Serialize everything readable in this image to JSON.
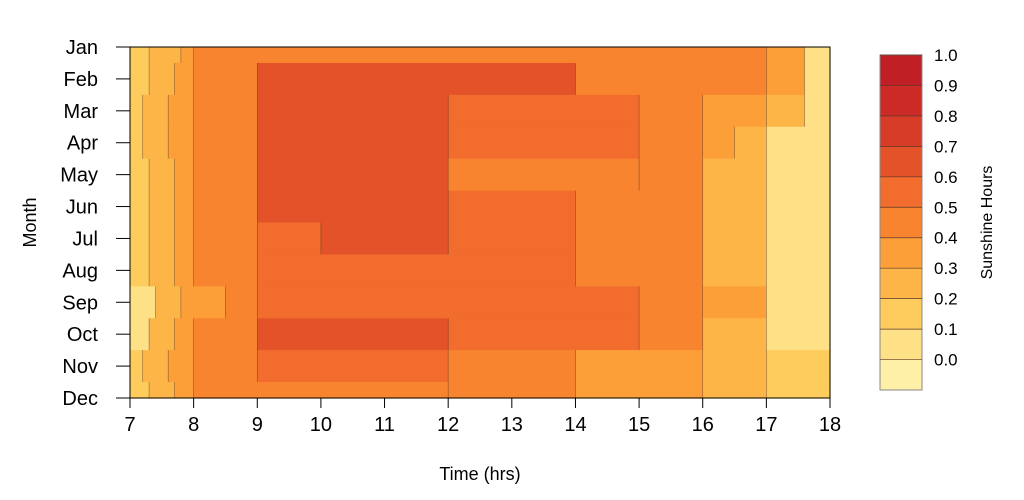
{
  "chart_data": {
    "type": "heatmap",
    "subtype": "filled-contour",
    "title": "",
    "xlabel": "Time (hrs)",
    "ylabel": "Month",
    "xlim": [
      7,
      18
    ],
    "x_ticks": [
      "7",
      "8",
      "9",
      "10",
      "11",
      "12",
      "13",
      "14",
      "15",
      "16",
      "17",
      "18"
    ],
    "y_categories": [
      "Jan",
      "Feb",
      "Mar",
      "Apr",
      "May",
      "Jun",
      "Jul",
      "Aug",
      "Sep",
      "Oct",
      "Nov",
      "Dec"
    ],
    "colorbar": {
      "title": "Sunshine Hours",
      "levels": [
        "0.0",
        "0.1",
        "0.2",
        "0.3",
        "0.4",
        "0.5",
        "0.6",
        "0.7",
        "0.8",
        "0.9",
        "1.0"
      ],
      "colors": [
        "#FFF0A8",
        "#FEE086",
        "#FECC5C",
        "#FDB547",
        "#FD9F39",
        "#F8842F",
        "#F16C2D",
        "#E4522A",
        "#D63C27",
        "#CC2A26",
        "#C01F26"
      ]
    },
    "approx_bands_by_month": [
      {
        "month": "Jan",
        "bands": [
          [
            7,
            7.3,
            2
          ],
          [
            7.3,
            7.8,
            3
          ],
          [
            7.8,
            8.0,
            4
          ],
          [
            8.0,
            17.0,
            5
          ],
          [
            17.0,
            17.6,
            4
          ],
          [
            17.6,
            18,
            1
          ]
        ]
      },
      {
        "month": "Feb",
        "bands": [
          [
            7,
            7.3,
            2
          ],
          [
            7.3,
            7.7,
            3
          ],
          [
            7.7,
            8.0,
            4
          ],
          [
            8.0,
            9.0,
            5
          ],
          [
            9.0,
            14.0,
            7
          ],
          [
            14.0,
            17.0,
            5
          ],
          [
            17.0,
            17.6,
            4
          ],
          [
            17.6,
            18,
            1
          ]
        ]
      },
      {
        "month": "Mar",
        "bands": [
          [
            7,
            7.2,
            2
          ],
          [
            7.2,
            7.6,
            3
          ],
          [
            7.6,
            8.0,
            4
          ],
          [
            8.0,
            9.0,
            5
          ],
          [
            9.0,
            12.0,
            7
          ],
          [
            12.0,
            15.0,
            6
          ],
          [
            15.0,
            16.0,
            5
          ],
          [
            16.0,
            17.0,
            4
          ],
          [
            17.0,
            17.6,
            3
          ],
          [
            17.6,
            18,
            1
          ]
        ]
      },
      {
        "month": "Apr",
        "bands": [
          [
            7,
            7.2,
            2
          ],
          [
            7.2,
            7.6,
            3
          ],
          [
            7.6,
            8.0,
            4
          ],
          [
            8.0,
            9.0,
            5
          ],
          [
            9.0,
            12.0,
            7
          ],
          [
            12.0,
            15.0,
            6
          ],
          [
            15.0,
            16.0,
            5
          ],
          [
            16.0,
            16.5,
            4
          ],
          [
            16.5,
            17.0,
            3
          ],
          [
            17.0,
            18,
            1
          ]
        ]
      },
      {
        "month": "May",
        "bands": [
          [
            7,
            7.3,
            2
          ],
          [
            7.3,
            7.7,
            3
          ],
          [
            7.7,
            8.0,
            4
          ],
          [
            8.0,
            9.0,
            5
          ],
          [
            9.0,
            12.0,
            7
          ],
          [
            12.0,
            15.0,
            5
          ],
          [
            15.0,
            16.0,
            5
          ],
          [
            16.0,
            17.0,
            3
          ],
          [
            17.0,
            18,
            1
          ]
        ]
      },
      {
        "month": "Jun",
        "bands": [
          [
            7,
            7.3,
            2
          ],
          [
            7.3,
            7.7,
            3
          ],
          [
            7.7,
            8.0,
            4
          ],
          [
            8.0,
            9.0,
            5
          ],
          [
            9.0,
            12.0,
            7
          ],
          [
            12.0,
            14.0,
            6
          ],
          [
            14.0,
            16.0,
            5
          ],
          [
            16.0,
            17.0,
            3
          ],
          [
            17.0,
            18,
            1
          ]
        ]
      },
      {
        "month": "Jul",
        "bands": [
          [
            7,
            7.3,
            2
          ],
          [
            7.3,
            7.7,
            3
          ],
          [
            7.7,
            8.0,
            4
          ],
          [
            8.0,
            9.0,
            5
          ],
          [
            9.0,
            10.0,
            6
          ],
          [
            10.0,
            12.0,
            7
          ],
          [
            12.0,
            14.0,
            6
          ],
          [
            14.0,
            16.0,
            5
          ],
          [
            16.0,
            17.0,
            3
          ],
          [
            17.0,
            18,
            1
          ]
        ]
      },
      {
        "month": "Aug",
        "bands": [
          [
            7,
            7.3,
            2
          ],
          [
            7.3,
            7.7,
            3
          ],
          [
            7.7,
            8.0,
            4
          ],
          [
            8.0,
            9.0,
            5
          ],
          [
            9.0,
            14.0,
            6
          ],
          [
            14.0,
            16.0,
            5
          ],
          [
            16.0,
            17.0,
            3
          ],
          [
            17.0,
            18,
            1
          ]
        ]
      },
      {
        "month": "Sep",
        "bands": [
          [
            7,
            7.4,
            1
          ],
          [
            7.4,
            7.8,
            3
          ],
          [
            7.8,
            8.5,
            4
          ],
          [
            8.5,
            9.0,
            5
          ],
          [
            9.0,
            15.0,
            6
          ],
          [
            15.0,
            16.0,
            5
          ],
          [
            16.0,
            17.0,
            4
          ],
          [
            17.0,
            18,
            1
          ]
        ]
      },
      {
        "month": "Oct",
        "bands": [
          [
            7,
            7.3,
            1
          ],
          [
            7.3,
            7.7,
            3
          ],
          [
            7.7,
            8.0,
            4
          ],
          [
            8.0,
            9.0,
            5
          ],
          [
            9.0,
            12.0,
            7
          ],
          [
            12.0,
            15.0,
            6
          ],
          [
            15.0,
            16.0,
            5
          ],
          [
            16.0,
            17.0,
            3
          ],
          [
            17.0,
            18,
            1
          ]
        ]
      },
      {
        "month": "Nov",
        "bands": [
          [
            7,
            7.2,
            2
          ],
          [
            7.2,
            7.6,
            3
          ],
          [
            7.6,
            8.0,
            4
          ],
          [
            8.0,
            9.0,
            5
          ],
          [
            9.0,
            12.0,
            6
          ],
          [
            12.0,
            14.0,
            5
          ],
          [
            14.0,
            16.0,
            4
          ],
          [
            16.0,
            17.0,
            3
          ],
          [
            17.0,
            18,
            2
          ]
        ]
      },
      {
        "month": "Dec",
        "bands": [
          [
            7,
            7.3,
            2
          ],
          [
            7.3,
            7.7,
            3
          ],
          [
            7.7,
            8.0,
            4
          ],
          [
            8.0,
            12.0,
            5
          ],
          [
            12.0,
            14.0,
            5
          ],
          [
            14.0,
            16.0,
            4
          ],
          [
            16.0,
            17.0,
            3
          ],
          [
            17.0,
            18,
            2
          ]
        ]
      }
    ]
  }
}
